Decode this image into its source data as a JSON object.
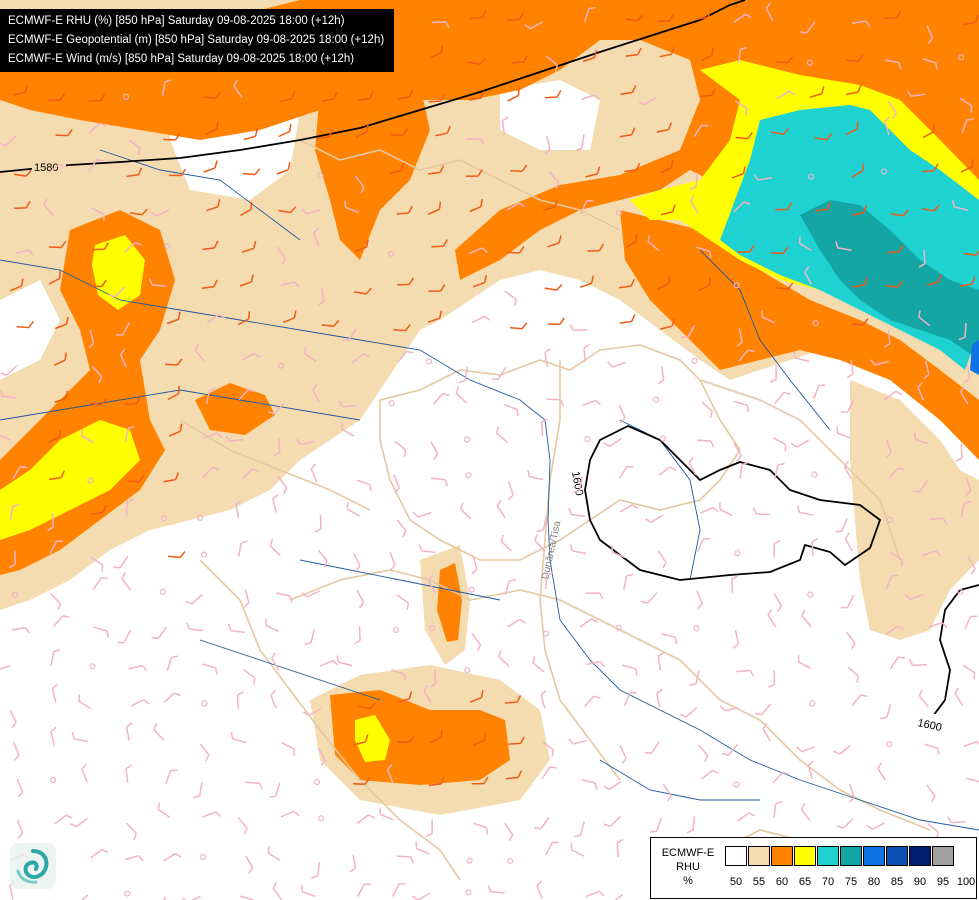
{
  "header": {
    "lines": [
      "ECMWF-E RHU (%) [850 hPa] Saturday 09-08-2025 18:00 (+12h)",
      "ECMWF-E Geopotential (m) [850 hPa] Saturday 09-08-2025 18:00 (+12h)",
      "ECMWF-E Wind (m/s) [850 hPa] Saturday 09-08-2025 18:00 (+12h)"
    ]
  },
  "contours": {
    "labels": [
      "1580",
      "1600",
      "1600"
    ]
  },
  "map_labels": {
    "river": "Dunărea/Tisa"
  },
  "legend": {
    "title": [
      "ECMWF-E",
      "RHU",
      "%"
    ],
    "ticks": [
      "50",
      "55",
      "60",
      "65",
      "70",
      "75",
      "80",
      "85",
      "90",
      "95",
      "100"
    ],
    "colors": [
      "#ffffff",
      "#f5dcb0",
      "#ff8200",
      "#ffff00",
      "#1ed2d2",
      "#14a5a5",
      "#0f73e6",
      "#0a50b4",
      "#001e6e",
      "#a0a0a0",
      "#646464"
    ]
  },
  "colors": {
    "rh_55": "#f5dcb0",
    "rh_60": "#ff8200",
    "rh_65": "#ffff00",
    "rh_70": "#1ed2d2",
    "rh_75": "#14a5a5",
    "rh_80": "#0f73e6",
    "barb_light": "#f2b3c4",
    "barb_orange": "#f05a14",
    "river": "#1e5aa0",
    "border": "#e6c8a0"
  },
  "icons": {
    "logo": "cyclone-logo-icon"
  }
}
